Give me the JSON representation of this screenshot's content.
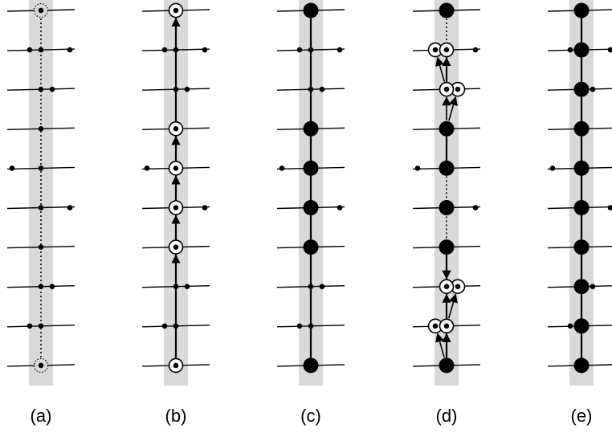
{
  "colors": {
    "band": "#d9d9d9",
    "ink": "#000000",
    "background": "#ffffff"
  },
  "panels": [
    {
      "label": "(a)",
      "rows": 10,
      "trunk": [
        {
          "from": 0,
          "to": 9,
          "style": "dotted"
        }
      ],
      "trunk_nodes": [
        {
          "row": 0,
          "kind": "dotted-ring"
        },
        {
          "row": 1,
          "kind": "dot"
        },
        {
          "row": 2,
          "kind": "dot"
        },
        {
          "row": 3,
          "kind": "dot"
        },
        {
          "row": 4,
          "kind": "dot"
        },
        {
          "row": 5,
          "kind": "dot"
        },
        {
          "row": 6,
          "kind": "dot"
        },
        {
          "row": 7,
          "kind": "dot"
        },
        {
          "row": 8,
          "kind": "dot"
        },
        {
          "row": 9,
          "kind": "dotted-ring"
        }
      ],
      "side_nodes": [
        {
          "row": 1,
          "side": "near-left"
        },
        {
          "row": 1,
          "side": "far-right"
        },
        {
          "row": 2,
          "side": "near-right"
        },
        {
          "row": 4,
          "side": "far-left"
        },
        {
          "row": 5,
          "side": "far-right"
        },
        {
          "row": 7,
          "side": "near-right"
        },
        {
          "row": 8,
          "side": "near-left"
        }
      ],
      "arrows": []
    },
    {
      "label": "(b)",
      "rows": 10,
      "trunk": [
        {
          "from": 0,
          "to": 9,
          "style": "solid"
        }
      ],
      "trunk_nodes": [
        {
          "row": 0,
          "kind": "ring"
        },
        {
          "row": 1,
          "kind": "dot"
        },
        {
          "row": 2,
          "kind": "dot"
        },
        {
          "row": 3,
          "kind": "ring"
        },
        {
          "row": 4,
          "kind": "ring"
        },
        {
          "row": 5,
          "kind": "ring"
        },
        {
          "row": 6,
          "kind": "ring"
        },
        {
          "row": 7,
          "kind": "dot"
        },
        {
          "row": 8,
          "kind": "dot"
        },
        {
          "row": 9,
          "kind": "ring"
        }
      ],
      "side_nodes": [
        {
          "row": 1,
          "side": "near-left"
        },
        {
          "row": 1,
          "side": "far-right"
        },
        {
          "row": 2,
          "side": "near-right"
        },
        {
          "row": 4,
          "side": "far-left"
        },
        {
          "row": 5,
          "side": "far-right"
        },
        {
          "row": 7,
          "side": "near-right"
        },
        {
          "row": 8,
          "side": "near-left"
        }
      ],
      "arrows": [
        {
          "from": {
            "row": 1,
            "pos": "center"
          },
          "to": {
            "row": 0,
            "pos": "center"
          }
        },
        {
          "from": {
            "row": 4,
            "pos": "center"
          },
          "to": {
            "row": 3,
            "pos": "center"
          }
        },
        {
          "from": {
            "row": 5,
            "pos": "center"
          },
          "to": {
            "row": 4,
            "pos": "center"
          }
        },
        {
          "from": {
            "row": 6,
            "pos": "center"
          },
          "to": {
            "row": 5,
            "pos": "center"
          }
        },
        {
          "from": {
            "row": 7,
            "pos": "center"
          },
          "to": {
            "row": 6,
            "pos": "center"
          }
        }
      ]
    },
    {
      "label": "(c)",
      "rows": 10,
      "trunk": [
        {
          "from": 0,
          "to": 9,
          "style": "solid"
        }
      ],
      "trunk_nodes": [
        {
          "row": 0,
          "kind": "big-dot"
        },
        {
          "row": 1,
          "kind": "dot"
        },
        {
          "row": 2,
          "kind": "dot"
        },
        {
          "row": 3,
          "kind": "big-dot"
        },
        {
          "row": 4,
          "kind": "big-dot"
        },
        {
          "row": 5,
          "kind": "big-dot"
        },
        {
          "row": 6,
          "kind": "big-dot"
        },
        {
          "row": 7,
          "kind": "dot"
        },
        {
          "row": 8,
          "kind": "dot"
        },
        {
          "row": 9,
          "kind": "big-dot"
        }
      ],
      "side_nodes": [
        {
          "row": 1,
          "side": "near-left"
        },
        {
          "row": 1,
          "side": "far-right"
        },
        {
          "row": 2,
          "side": "near-right"
        },
        {
          "row": 4,
          "side": "far-left"
        },
        {
          "row": 5,
          "side": "far-right"
        },
        {
          "row": 7,
          "side": "near-right"
        },
        {
          "row": 8,
          "side": "near-left"
        }
      ],
      "arrows": []
    },
    {
      "label": "(d)",
      "rows": 10,
      "trunk": [
        {
          "from": 0,
          "to": 1,
          "style": "dotted"
        },
        {
          "from": 1,
          "to": 2,
          "style": "solid"
        },
        {
          "from": 2,
          "to": 3,
          "style": "dotted"
        },
        {
          "from": 3,
          "to": 4,
          "style": "solid"
        },
        {
          "from": 4,
          "to": 6,
          "style": "dotted"
        },
        {
          "from": 6,
          "to": 9,
          "style": "solid"
        }
      ],
      "trunk_nodes": [
        {
          "row": 0,
          "kind": "big-dot"
        },
        {
          "row": 1,
          "kind": "ring"
        },
        {
          "row": 2,
          "kind": "ring"
        },
        {
          "row": 3,
          "kind": "big-dot"
        },
        {
          "row": 4,
          "kind": "big-dot"
        },
        {
          "row": 5,
          "kind": "big-dot"
        },
        {
          "row": 6,
          "kind": "big-dot"
        },
        {
          "row": 7,
          "kind": "ring"
        },
        {
          "row": 8,
          "kind": "ring"
        },
        {
          "row": 9,
          "kind": "big-dot"
        }
      ],
      "side_nodes": [
        {
          "row": 1,
          "side": "near-left",
          "kind": "ring"
        },
        {
          "row": 1,
          "side": "far-right",
          "kind": "dot"
        },
        {
          "row": 2,
          "side": "near-right",
          "kind": "ring"
        },
        {
          "row": 4,
          "side": "far-left",
          "kind": "dot"
        },
        {
          "row": 5,
          "side": "far-right",
          "kind": "dot"
        },
        {
          "row": 7,
          "side": "near-right",
          "kind": "ring"
        },
        {
          "row": 8,
          "side": "near-left",
          "kind": "ring"
        }
      ],
      "arrows": [
        {
          "from": {
            "row": 2,
            "pos": "center"
          },
          "to": {
            "row": 1,
            "pos": "near-left"
          }
        },
        {
          "from": {
            "row": 2,
            "pos": "center"
          },
          "to": {
            "row": 1,
            "pos": "center"
          }
        },
        {
          "from": {
            "row": 3,
            "pos": "center"
          },
          "to": {
            "row": 2,
            "pos": "center"
          }
        },
        {
          "from": {
            "row": 3,
            "pos": "center"
          },
          "to": {
            "row": 2,
            "pos": "near-right"
          }
        },
        {
          "from": {
            "row": 6,
            "pos": "center"
          },
          "to": {
            "row": 7,
            "pos": "center"
          }
        },
        {
          "from": {
            "row": 8,
            "pos": "center"
          },
          "to": {
            "row": 7,
            "pos": "center"
          }
        },
        {
          "from": {
            "row": 8,
            "pos": "center"
          },
          "to": {
            "row": 7,
            "pos": "near-right"
          }
        },
        {
          "from": {
            "row": 9,
            "pos": "center"
          },
          "to": {
            "row": 8,
            "pos": "center"
          }
        },
        {
          "from": {
            "row": 9,
            "pos": "center"
          },
          "to": {
            "row": 8,
            "pos": "near-left"
          }
        }
      ]
    },
    {
      "label": "(e)",
      "rows": 10,
      "trunk": [
        {
          "from": 0,
          "to": 9,
          "style": "solid"
        }
      ],
      "trunk_nodes": [
        {
          "row": 0,
          "kind": "big-dot"
        },
        {
          "row": 1,
          "kind": "big-dot"
        },
        {
          "row": 2,
          "kind": "big-dot"
        },
        {
          "row": 3,
          "kind": "big-dot"
        },
        {
          "row": 4,
          "kind": "big-dot"
        },
        {
          "row": 5,
          "kind": "big-dot"
        },
        {
          "row": 6,
          "kind": "big-dot"
        },
        {
          "row": 7,
          "kind": "big-dot"
        },
        {
          "row": 8,
          "kind": "big-dot"
        },
        {
          "row": 9,
          "kind": "big-dot"
        }
      ],
      "side_nodes": [
        {
          "row": 1,
          "side": "near-left"
        },
        {
          "row": 1,
          "side": "far-right"
        },
        {
          "row": 2,
          "side": "near-right"
        },
        {
          "row": 4,
          "side": "far-left"
        },
        {
          "row": 5,
          "side": "far-right"
        },
        {
          "row": 7,
          "side": "near-right"
        },
        {
          "row": 8,
          "side": "near-left"
        }
      ],
      "arrows": []
    }
  ]
}
